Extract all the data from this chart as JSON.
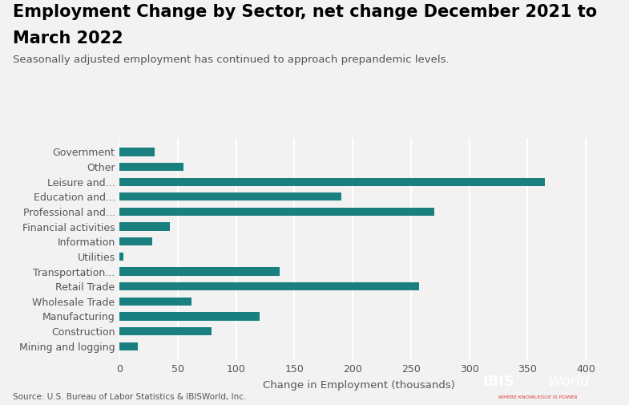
{
  "title_line1": "Employment Change by Sector, net change December 2021 to",
  "title_line2": "March 2022",
  "subtitle": "Seasonally adjusted employment has continued to approach prepandemic levels.",
  "categories": [
    "Government",
    "Other",
    "Leisure and...",
    "Education and...",
    "Professional and...",
    "Financial activities",
    "Information",
    "Utilities",
    "Transportation...",
    "Retail Trade",
    "Wholesale Trade",
    "Manufacturing",
    "Construction",
    "Mining and logging"
  ],
  "values": [
    30,
    55,
    365,
    190,
    270,
    43,
    28,
    3,
    137,
    257,
    62,
    120,
    79,
    16
  ],
  "bar_color": "#1a7f7f",
  "xlabel": "Change in Employment (thousands)",
  "xlim": [
    0,
    410
  ],
  "xticks": [
    0,
    50,
    100,
    150,
    200,
    250,
    300,
    350,
    400
  ],
  "source": "Source: U.S. Bureau of Labor Statistics & IBISWorld, Inc.",
  "bg_color": "#f2f2f2",
  "title_fontsize": 15,
  "subtitle_fontsize": 9.5,
  "axis_label_fontsize": 9,
  "tick_fontsize": 9
}
